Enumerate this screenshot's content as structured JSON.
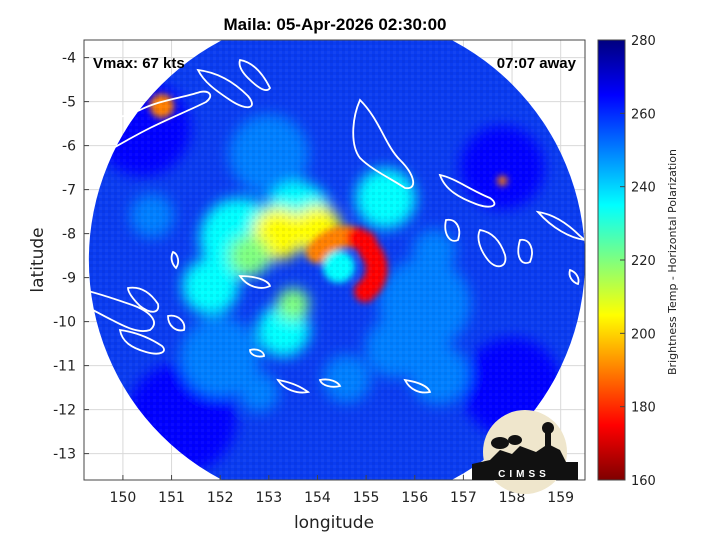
{
  "chart_data": {
    "type": "heatmap",
    "title": "Maila: 05-Apr-2026 02:30:00",
    "xlabel": "longitude",
    "ylabel": "latitude",
    "xlim": [
      149.2,
      159.5
    ],
    "ylim": [
      -13.6,
      -3.6
    ],
    "xticks": [
      150,
      151,
      152,
      153,
      154,
      155,
      156,
      157,
      158,
      159
    ],
    "yticks": [
      -4,
      -5,
      -6,
      -7,
      -8,
      -9,
      -10,
      -11,
      -12,
      -13
    ],
    "grid": true,
    "colormap": "jet",
    "colorbar": {
      "label": "Brightness Temp - Horizontal Polarization",
      "range": [
        160,
        280
      ],
      "ticks": [
        160,
        180,
        200,
        220,
        240,
        260,
        280
      ]
    },
    "storm_center": {
      "lon": 154.6,
      "lat": -8.8
    },
    "swath": {
      "center_lon": 154.4,
      "center_lat": -8.6,
      "radius_deg": 5.1
    },
    "annotations": {
      "top_left": "Vmax: 67 kts",
      "top_right": "07:07 away"
    }
  },
  "logo": {
    "text": "CIMSS"
  },
  "colors": {
    "jet": [
      "#00007f",
      "#0000ff",
      "#007fff",
      "#00ffff",
      "#7fff7f",
      "#ffff00",
      "#ff7f00",
      "#ff0000",
      "#7f0000"
    ],
    "coast": "#ffffff",
    "outside": "#ffffff"
  }
}
